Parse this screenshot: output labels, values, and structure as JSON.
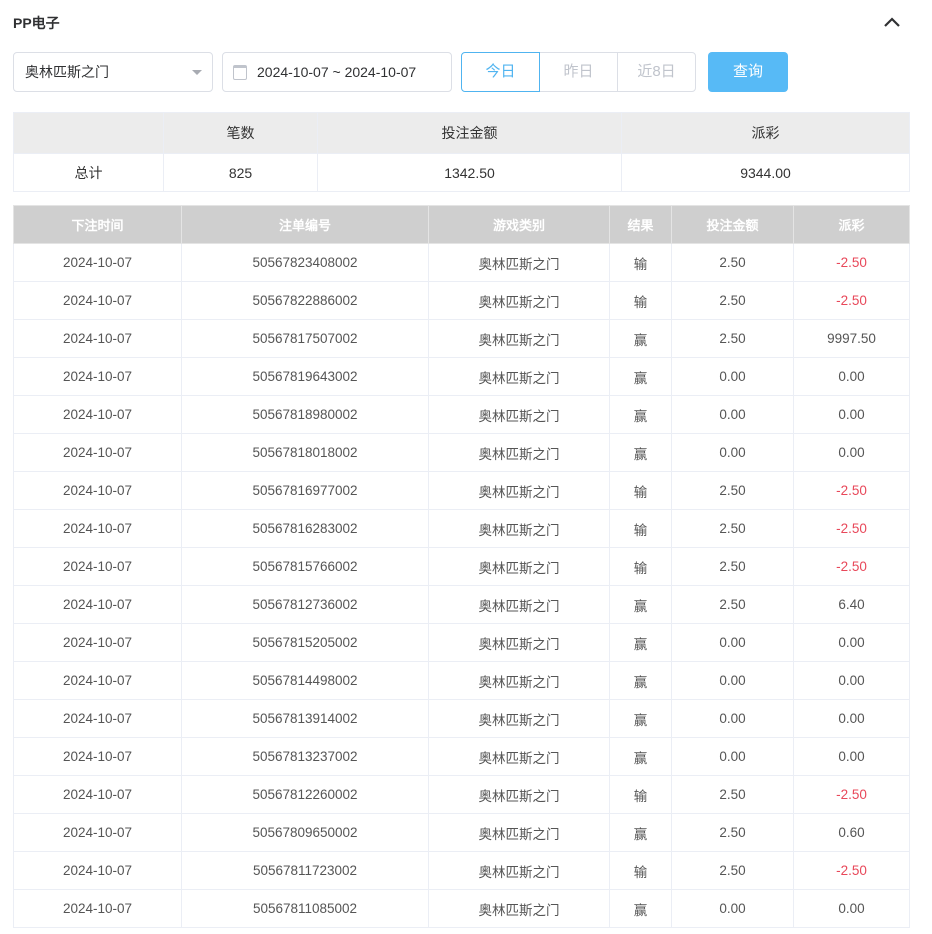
{
  "header": {
    "title": "PP电子",
    "collapse_icon": "chevron-up-icon"
  },
  "filters": {
    "game_select": "奥林匹斯之门",
    "date_range": "2024-10-07 ~ 2024-10-07",
    "tabs": [
      {
        "label": "今日",
        "active": true
      },
      {
        "label": "昨日",
        "active": false
      },
      {
        "label": "近8日",
        "active": false
      }
    ],
    "query_label": "查询",
    "accent": "#57baf6"
  },
  "summary": {
    "headers": [
      "",
      "笔数",
      "投注金额",
      "派彩"
    ],
    "row": [
      "总计",
      "825",
      "1342.50",
      "9344.00"
    ]
  },
  "table": {
    "headers": [
      "下注时间",
      "注单编号",
      "游戏类别",
      "结果",
      "投注金额",
      "派彩"
    ],
    "rows": [
      [
        "2024-10-07",
        "50567823408002",
        "奥林匹斯之门",
        "输",
        "2.50",
        "-2.50"
      ],
      [
        "2024-10-07",
        "50567822886002",
        "奥林匹斯之门",
        "输",
        "2.50",
        "-2.50"
      ],
      [
        "2024-10-07",
        "50567817507002",
        "奥林匹斯之门",
        "赢",
        "2.50",
        "9997.50"
      ],
      [
        "2024-10-07",
        "50567819643002",
        "奥林匹斯之门",
        "赢",
        "0.00",
        "0.00"
      ],
      [
        "2024-10-07",
        "50567818980002",
        "奥林匹斯之门",
        "赢",
        "0.00",
        "0.00"
      ],
      [
        "2024-10-07",
        "50567818018002",
        "奥林匹斯之门",
        "赢",
        "0.00",
        "0.00"
      ],
      [
        "2024-10-07",
        "50567816977002",
        "奥林匹斯之门",
        "输",
        "2.50",
        "-2.50"
      ],
      [
        "2024-10-07",
        "50567816283002",
        "奥林匹斯之门",
        "输",
        "2.50",
        "-2.50"
      ],
      [
        "2024-10-07",
        "50567815766002",
        "奥林匹斯之门",
        "输",
        "2.50",
        "-2.50"
      ],
      [
        "2024-10-07",
        "50567812736002",
        "奥林匹斯之门",
        "赢",
        "2.50",
        "6.40"
      ],
      [
        "2024-10-07",
        "50567815205002",
        "奥林匹斯之门",
        "赢",
        "0.00",
        "0.00"
      ],
      [
        "2024-10-07",
        "50567814498002",
        "奥林匹斯之门",
        "赢",
        "0.00",
        "0.00"
      ],
      [
        "2024-10-07",
        "50567813914002",
        "奥林匹斯之门",
        "赢",
        "0.00",
        "0.00"
      ],
      [
        "2024-10-07",
        "50567813237002",
        "奥林匹斯之门",
        "赢",
        "0.00",
        "0.00"
      ],
      [
        "2024-10-07",
        "50567812260002",
        "奥林匹斯之门",
        "输",
        "2.50",
        "-2.50"
      ],
      [
        "2024-10-07",
        "50567809650002",
        "奥林匹斯之门",
        "赢",
        "2.50",
        "0.60"
      ],
      [
        "2024-10-07",
        "50567811723002",
        "奥林匹斯之门",
        "输",
        "2.50",
        "-2.50"
      ],
      [
        "2024-10-07",
        "50567811085002",
        "奥林匹斯之门",
        "赢",
        "0.00",
        "0.00"
      ]
    ],
    "negative_color": "#e8485a"
  }
}
